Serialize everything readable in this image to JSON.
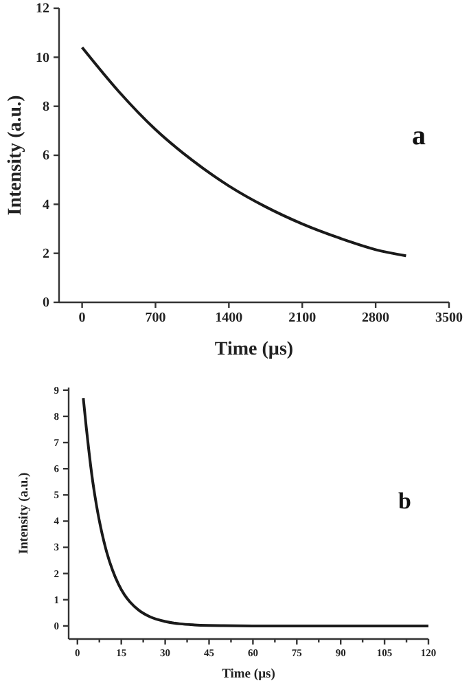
{
  "chart_data": [
    {
      "type": "line",
      "xlabel": "Time (µs)",
      "ylabel": "Intensity (a.u.)",
      "annotations": [
        "a"
      ],
      "xlim": [
        -220,
        3500
      ],
      "ylim": [
        0,
        12
      ],
      "xticks": [
        0,
        700,
        1400,
        2100,
        2800,
        3500
      ],
      "yticks": [
        0,
        2,
        4,
        6,
        8,
        10,
        12
      ],
      "grid": false,
      "marker": "none",
      "line_style": "solid",
      "series": [
        {
          "color": "#1a1a1a",
          "x": [
            0,
            350,
            700,
            1050,
            1400,
            1750,
            2100,
            2450,
            2800,
            3090
          ],
          "values": [
            10.4,
            8.6,
            7.05,
            5.8,
            4.75,
            3.9,
            3.2,
            2.63,
            2.15,
            1.9
          ]
        }
      ]
    },
    {
      "type": "line",
      "xlabel": "Time (µs)",
      "ylabel": "Intensity (a.u.)",
      "annotations": [
        "b"
      ],
      "xlim": [
        -3,
        120
      ],
      "ylim": [
        -0.5,
        9.1
      ],
      "xticks": [
        0,
        {
          "value": 7.5,
          "label": null
        },
        15,
        {
          "value": 22.5,
          "label": null
        },
        30,
        {
          "value": 37.5,
          "label": null
        },
        45,
        {
          "value": 52.5,
          "label": null
        },
        60,
        {
          "value": 67.5,
          "label": null
        },
        75,
        {
          "value": 82.5,
          "label": null
        },
        90,
        {
          "value": 97.5,
          "label": null
        },
        105,
        {
          "value": 112.5,
          "label": null
        },
        120
      ],
      "yticks": [
        0,
        1,
        2,
        3,
        4,
        5,
        6,
        7,
        8,
        9
      ],
      "grid": false,
      "marker": "none",
      "line_style": "solid",
      "series": [
        {
          "color": "#1a1a1a",
          "x": [
            2,
            3,
            4,
            5,
            6,
            7,
            8,
            9,
            10,
            12,
            14,
            16,
            18,
            21,
            25,
            30,
            35,
            40,
            45,
            50,
            60,
            75,
            90,
            105,
            120
          ],
          "values": [
            8.7,
            7.6,
            6.6,
            5.7,
            4.95,
            4.3,
            3.74,
            3.25,
            2.82,
            2.13,
            1.6,
            1.2,
            0.91,
            0.6,
            0.34,
            0.17,
            0.08,
            0.04,
            0.02,
            0.01,
            0,
            0,
            0,
            0,
            0
          ]
        }
      ]
    }
  ]
}
